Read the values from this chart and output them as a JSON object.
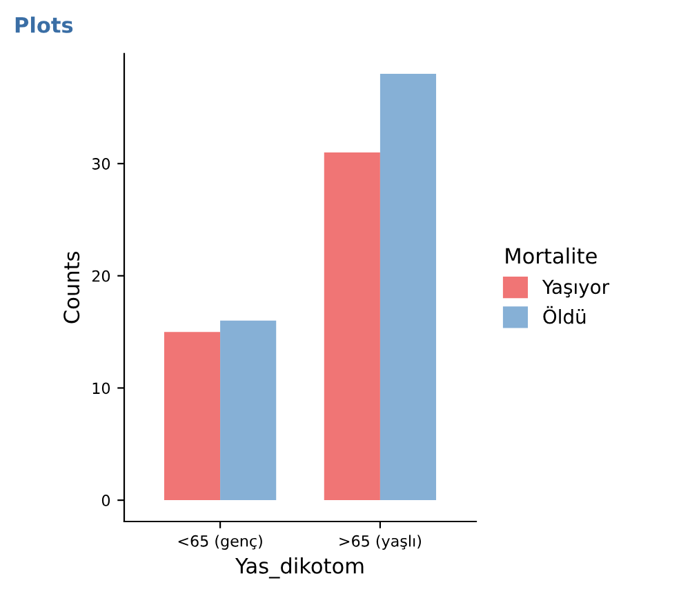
{
  "chart_data": {
    "type": "bar",
    "title": "Plots",
    "xlabel": "Yas_dikotom",
    "ylabel": "Counts",
    "legend_title": "Mortalite",
    "categories": [
      "<65 (genç)",
      ">65 (yaşlı)"
    ],
    "series": [
      {
        "name": "Yaşıyor",
        "color": "#f07575",
        "values": [
          15,
          31
        ]
      },
      {
        "name": "Öldü",
        "color": "#86b0d6",
        "values": [
          16,
          38
        ]
      }
    ],
    "ylim": [
      -1.9,
      39.8
    ],
    "yticks": [
      0,
      10,
      20,
      30
    ],
    "grid": false,
    "legend": "right"
  }
}
